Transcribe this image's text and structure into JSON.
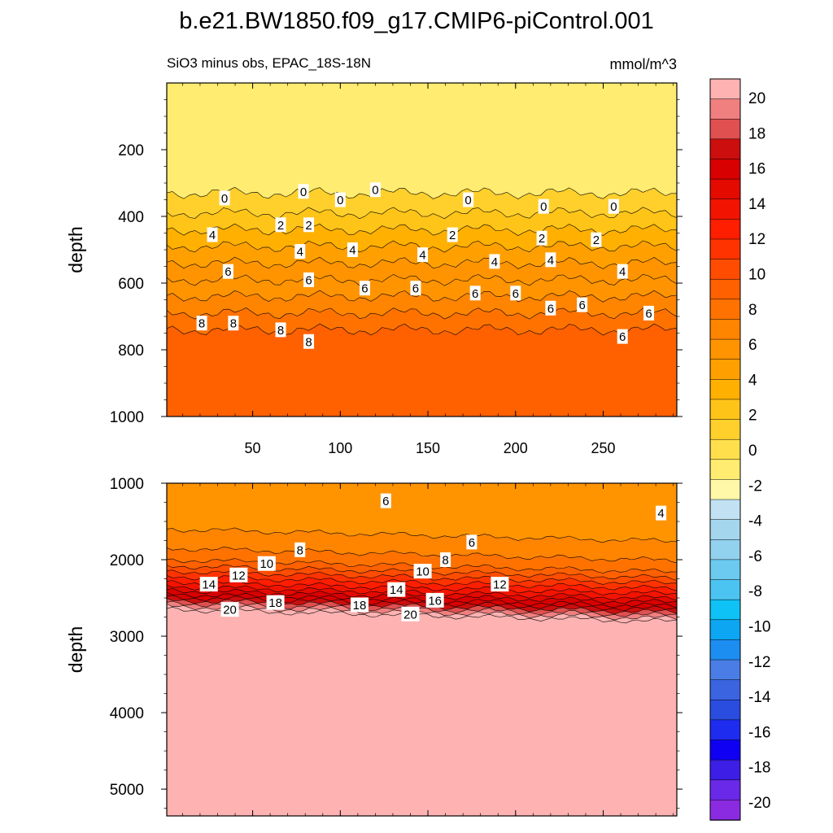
{
  "figure": {
    "title": "b.e21.BW1850.f09_g17.CMIP6-piControl.001",
    "subtitle_left": "SiO3 minus obs, EPAC_18S-18N",
    "subtitle_right": "mmol/m^3"
  },
  "colorbar": {
    "levels": [
      -20,
      -18,
      -16,
      -14,
      -12,
      -10,
      -8,
      -6,
      -4,
      -2,
      0,
      2,
      4,
      6,
      8,
      10,
      12,
      14,
      16,
      18,
      20
    ],
    "tick_labels": [
      "-20",
      "-18",
      "-16",
      "-14",
      "-12",
      "-10",
      "-8",
      "-6",
      "-4",
      "-2",
      "0",
      "2",
      "4",
      "6",
      "8",
      "10",
      "12",
      "14",
      "16",
      "18",
      "20"
    ],
    "colors_low_to_high": [
      "#8a2be2",
      "#6a28e8",
      "#3c1ee6",
      "#0f00f4",
      "#1e2cf0",
      "#2a4ddf",
      "#3a64e0",
      "#4a7ee6",
      "#1c8ef2",
      "#0ca6f2",
      "#0fc2f5",
      "#4cc4f2",
      "#6ccaf0",
      "#92d2ee",
      "#a4d6ee",
      "#c2e2f4",
      "#fff8a8",
      "#ffec70",
      "#ffe04c",
      "#ffd02c",
      "#ffc418",
      "#ffb000",
      "#ffa000",
      "#ff9400",
      "#ff8400",
      "#ff7200",
      "#ff6000",
      "#ff4c00",
      "#ff3300",
      "#ff1e00",
      "#f21400",
      "#e40a00",
      "#d80000",
      "#cc0e0e",
      "#e05050",
      "#f08080",
      "#ffb2b2"
    ]
  },
  "chart_data": [
    {
      "type": "heatmap",
      "name": "upper-panel",
      "ylabel": "depth",
      "xlim": [
        1,
        292
      ],
      "ylim": [
        1000,
        0
      ],
      "x_ticks": [
        50,
        100,
        150,
        200,
        250
      ],
      "y_ticks": [
        200,
        400,
        600,
        800,
        1000
      ],
      "x_tick_labels": [
        "50",
        "100",
        "150",
        "200",
        "250"
      ],
      "y_tick_labels": [
        "200",
        "400",
        "600",
        "800",
        "1000"
      ],
      "bands": [
        {
          "value": -1.5,
          "depth_top": 0,
          "depth_bottom": 330
        },
        {
          "value": 0.5,
          "depth_top": 330,
          "depth_bottom": 390
        },
        {
          "value": 1.5,
          "depth_top": 390,
          "depth_bottom": 440
        },
        {
          "value": 2.5,
          "depth_top": 440,
          "depth_bottom": 490
        },
        {
          "value": 3.5,
          "depth_top": 490,
          "depth_bottom": 540
        },
        {
          "value": 4.5,
          "depth_top": 540,
          "depth_bottom": 590
        },
        {
          "value": 5.5,
          "depth_top": 590,
          "depth_bottom": 640
        },
        {
          "value": 6.5,
          "depth_top": 640,
          "depth_bottom": 690
        },
        {
          "value": 7.5,
          "depth_top": 690,
          "depth_bottom": 740
        },
        {
          "value": 8.5,
          "depth_top": 740,
          "depth_bottom": 1000
        }
      ],
      "contour_labels": [
        {
          "text": "0",
          "x": 34,
          "depth": 345
        },
        {
          "text": "0",
          "x": 79,
          "depth": 325
        },
        {
          "text": "0",
          "x": 100,
          "depth": 350
        },
        {
          "text": "0",
          "x": 120,
          "depth": 320
        },
        {
          "text": "0",
          "x": 173,
          "depth": 350
        },
        {
          "text": "0",
          "x": 216,
          "depth": 370
        },
        {
          "text": "0",
          "x": 256,
          "depth": 370
        },
        {
          "text": "2",
          "x": 66,
          "depth": 425
        },
        {
          "text": "2",
          "x": 82,
          "depth": 425
        },
        {
          "text": "2",
          "x": 164,
          "depth": 455
        },
        {
          "text": "2",
          "x": 215,
          "depth": 465
        },
        {
          "text": "2",
          "x": 246,
          "depth": 470
        },
        {
          "text": "4",
          "x": 27,
          "depth": 455
        },
        {
          "text": "4",
          "x": 77,
          "depth": 505
        },
        {
          "text": "4",
          "x": 107,
          "depth": 500
        },
        {
          "text": "4",
          "x": 147,
          "depth": 515
        },
        {
          "text": "4",
          "x": 188,
          "depth": 535
        },
        {
          "text": "4",
          "x": 220,
          "depth": 530
        },
        {
          "text": "4",
          "x": 261,
          "depth": 565
        },
        {
          "text": "6",
          "x": 36,
          "depth": 565
        },
        {
          "text": "6",
          "x": 82,
          "depth": 590
        },
        {
          "text": "6",
          "x": 114,
          "depth": 615
        },
        {
          "text": "6",
          "x": 143,
          "depth": 615
        },
        {
          "text": "6",
          "x": 177,
          "depth": 630
        },
        {
          "text": "6",
          "x": 200,
          "depth": 630
        },
        {
          "text": "6",
          "x": 220,
          "depth": 675
        },
        {
          "text": "6",
          "x": 238,
          "depth": 665
        },
        {
          "text": "6",
          "x": 261,
          "depth": 760
        },
        {
          "text": "6",
          "x": 276,
          "depth": 690
        },
        {
          "text": "8",
          "x": 21,
          "depth": 720
        },
        {
          "text": "8",
          "x": 39,
          "depth": 720
        },
        {
          "text": "8",
          "x": 66,
          "depth": 740
        },
        {
          "text": "8",
          "x": 82,
          "depth": 775
        }
      ]
    },
    {
      "type": "heatmap",
      "name": "lower-panel",
      "ylabel": "depth",
      "xlim": [
        1,
        292
      ],
      "ylim": [
        5350,
        1000
      ],
      "x_ticks": [
        50,
        100,
        150,
        200,
        250
      ],
      "y_ticks": [
        1000,
        2000,
        3000,
        4000,
        5000
      ],
      "y_tick_labels": [
        "1000",
        "2000",
        "3000",
        "4000",
        "5000"
      ],
      "bands": [
        {
          "value": 5.5,
          "depth_top": 1000,
          "depth_bottom": 1600
        },
        {
          "value": 6.5,
          "depth_top": 1600,
          "depth_bottom": 1850
        },
        {
          "value": 7.5,
          "depth_top": 1850,
          "depth_bottom": 2000
        },
        {
          "value": 8.5,
          "depth_top": 2000,
          "depth_bottom": 2080
        },
        {
          "value": 9.5,
          "depth_top": 2080,
          "depth_bottom": 2150
        },
        {
          "value": 10.5,
          "depth_top": 2150,
          "depth_bottom": 2220
        },
        {
          "value": 11.5,
          "depth_top": 2220,
          "depth_bottom": 2290
        },
        {
          "value": 12.5,
          "depth_top": 2290,
          "depth_bottom": 2350
        },
        {
          "value": 13.5,
          "depth_top": 2350,
          "depth_bottom": 2400
        },
        {
          "value": 14.5,
          "depth_top": 2400,
          "depth_bottom": 2450
        },
        {
          "value": 15.5,
          "depth_top": 2450,
          "depth_bottom": 2490
        },
        {
          "value": 16.5,
          "depth_top": 2490,
          "depth_bottom": 2530
        },
        {
          "value": 17.5,
          "depth_top": 2530,
          "depth_bottom": 2570
        },
        {
          "value": 18.5,
          "depth_top": 2570,
          "depth_bottom": 2610
        },
        {
          "value": 19.5,
          "depth_top": 2610,
          "depth_bottom": 2650
        },
        {
          "value": 21,
          "depth_top": 2650,
          "depth_bottom": 5350
        }
      ],
      "band_slope_per_x": 0.55,
      "contour_labels": [
        {
          "text": "6",
          "x": 126,
          "depth": 1230
        },
        {
          "text": "4",
          "x": 283,
          "depth": 1390
        },
        {
          "text": "6",
          "x": 175,
          "depth": 1770
        },
        {
          "text": "8",
          "x": 77,
          "depth": 1870
        },
        {
          "text": "8",
          "x": 160,
          "depth": 2000
        },
        {
          "text": "10",
          "x": 58,
          "depth": 2050
        },
        {
          "text": "10",
          "x": 147,
          "depth": 2150
        },
        {
          "text": "12",
          "x": 42,
          "depth": 2200
        },
        {
          "text": "12",
          "x": 191,
          "depth": 2320
        },
        {
          "text": "14",
          "x": 25,
          "depth": 2320
        },
        {
          "text": "14",
          "x": 132,
          "depth": 2390
        },
        {
          "text": "16",
          "x": 154,
          "depth": 2530
        },
        {
          "text": "18",
          "x": 63,
          "depth": 2560
        },
        {
          "text": "18",
          "x": 111,
          "depth": 2590
        },
        {
          "text": "20",
          "x": 37,
          "depth": 2650
        },
        {
          "text": "20",
          "x": 140,
          "depth": 2710
        }
      ]
    }
  ]
}
